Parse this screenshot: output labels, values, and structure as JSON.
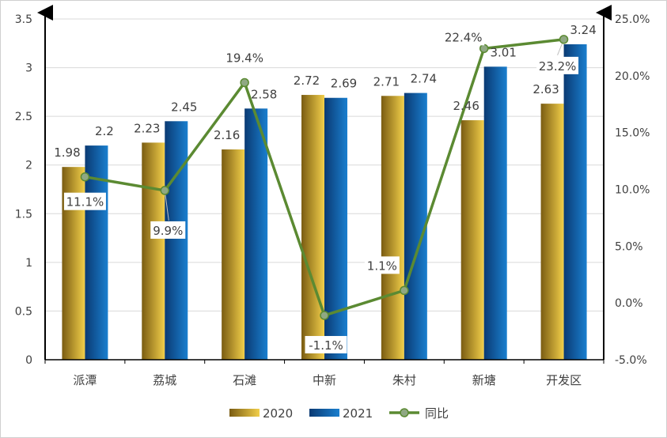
{
  "chart_data": {
    "type": "bar",
    "categories": [
      "派潭",
      "荔城",
      "石滩",
      "中新",
      "朱村",
      "新塘",
      "开发区"
    ],
    "series": [
      {
        "name": "2020",
        "type": "bar",
        "axis": "left",
        "values": [
          1.98,
          2.23,
          2.16,
          2.72,
          2.71,
          2.46,
          2.63
        ]
      },
      {
        "name": "2021",
        "type": "bar",
        "axis": "left",
        "values": [
          2.2,
          2.45,
          2.58,
          2.69,
          2.74,
          3.01,
          3.24
        ]
      },
      {
        "name": "同比",
        "type": "line",
        "axis": "right",
        "values": [
          11.1,
          9.9,
          19.4,
          -1.1,
          1.1,
          22.4,
          23.2
        ],
        "labels": [
          "11.1%",
          "9.9%",
          "19.4%",
          "-1.1%",
          "1.1%",
          "22.4%",
          "23.2%"
        ]
      }
    ],
    "bar_labels": {
      "2020": [
        "1.98",
        "2.23",
        "2.16",
        "2.72",
        "2.71",
        "2.46",
        "2.63"
      ],
      "2021": [
        "2.2",
        "2.45",
        "2.58",
        "2.69",
        "2.74",
        "3.01",
        "3.24"
      ]
    },
    "left_axis": {
      "ylim": [
        0,
        3.5
      ],
      "ticks": [
        0,
        0.5,
        1,
        1.5,
        2,
        2.5,
        3,
        3.5
      ],
      "tick_labels": [
        "0",
        "0.5",
        "1",
        "1.5",
        "2",
        "2.5",
        "3",
        "3.5"
      ]
    },
    "right_axis": {
      "ylim": [
        -5,
        25
      ],
      "ticks": [
        -5,
        0,
        5,
        10,
        15,
        20,
        25
      ],
      "tick_labels": [
        "-5.0%",
        "0.0%",
        "5.0%",
        "10.0%",
        "15.0%",
        "20.0%",
        "25.0%"
      ]
    },
    "legend": {
      "position": "bottom",
      "items": [
        "2020",
        "2021",
        "同比"
      ]
    },
    "colors": {
      "s2020_dark": "#7a5c12",
      "s2020_light": "#f2cf4a",
      "s2021_dark": "#0a3a73",
      "s2021_light": "#1a7fcf",
      "line": "#5b8a32",
      "marker_fill": "#8fa883",
      "axis": "#000000",
      "grid": "#d9d9d9",
      "text": "#404040"
    }
  }
}
